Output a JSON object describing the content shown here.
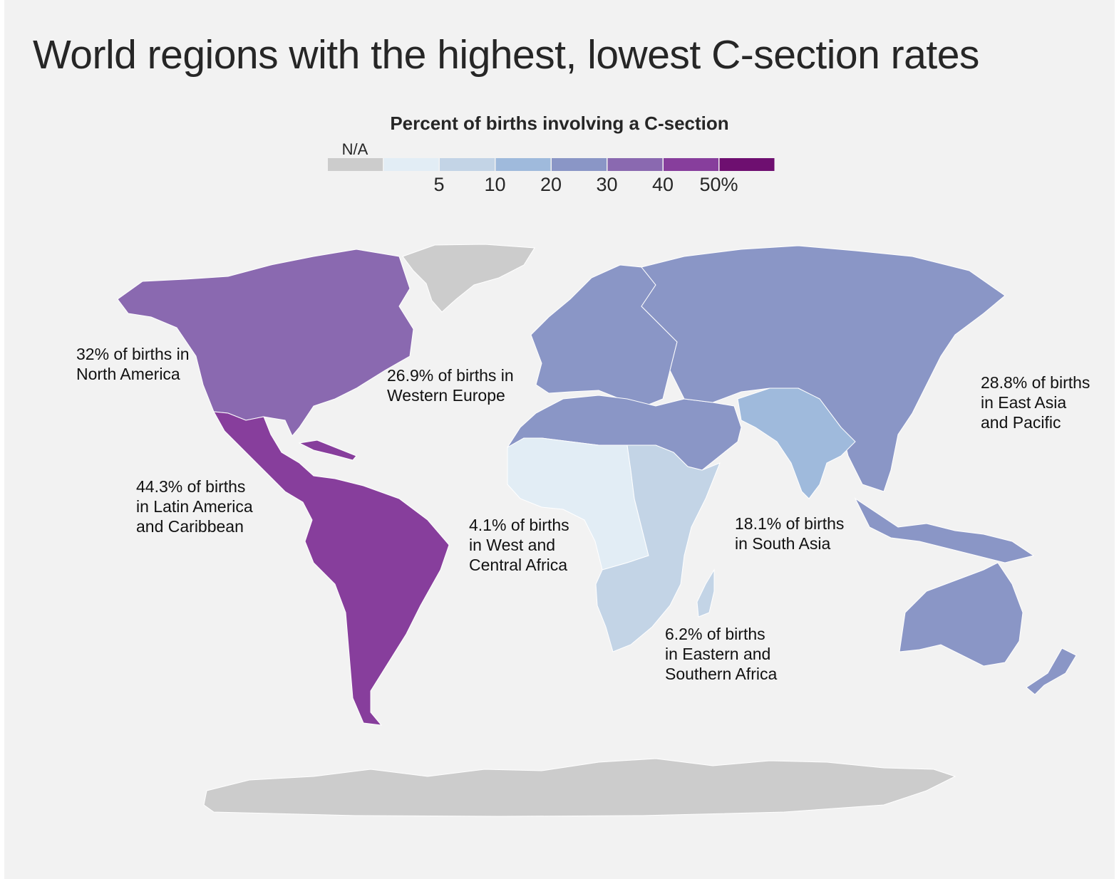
{
  "title": "World regions with the highest, lowest C-section rates",
  "legend": {
    "title": "Percent of births involving a C-section",
    "na_label": "N/A",
    "na_color": "#cccccc",
    "bins": [
      {
        "range": [
          0,
          5
        ],
        "color": "#e2edf5"
      },
      {
        "range": [
          5,
          10
        ],
        "color": "#c3d4e6"
      },
      {
        "range": [
          10,
          20
        ],
        "color": "#9fbadc"
      },
      {
        "range": [
          20,
          30
        ],
        "color": "#8a96c6"
      },
      {
        "range": [
          30,
          40
        ],
        "color": "#8a69b0"
      },
      {
        "range": [
          40,
          50
        ],
        "color": "#873e9c"
      },
      {
        "range": [
          50,
          100
        ],
        "color": "#6e0f70"
      }
    ],
    "tick_labels": [
      "5",
      "10",
      "20",
      "30",
      "40",
      "50%"
    ]
  },
  "chart_data": {
    "type": "choropleth",
    "title": "World regions with the highest, lowest C-section rates",
    "metric": "Percent of births involving a C-section",
    "unit": "%",
    "regions": [
      {
        "name": "North America",
        "value": 32,
        "label": "32% of births in\nNorth America"
      },
      {
        "name": "Latin America and Caribbean",
        "value": 44.3,
        "label": "44.3% of births\nin Latin America\nand Caribbean"
      },
      {
        "name": "Western Europe",
        "value": 26.9,
        "label": "26.9% of births in\nWestern Europe"
      },
      {
        "name": "West and Central Africa",
        "value": 4.1,
        "label": "4.1% of births\nin West and\nCentral Africa"
      },
      {
        "name": "Eastern and Southern Africa",
        "value": 6.2,
        "label": "6.2% of births\nin Eastern and\nSouthern Africa"
      },
      {
        "name": "South Asia",
        "value": 18.1,
        "label": "18.1% of births\nin South Asia"
      },
      {
        "name": "East Asia and Pacific",
        "value": 28.8,
        "label": "28.8% of births\nin East Asia\nand Pacific"
      }
    ],
    "no_data_areas": [
      "Greenland",
      "Antarctica"
    ]
  }
}
